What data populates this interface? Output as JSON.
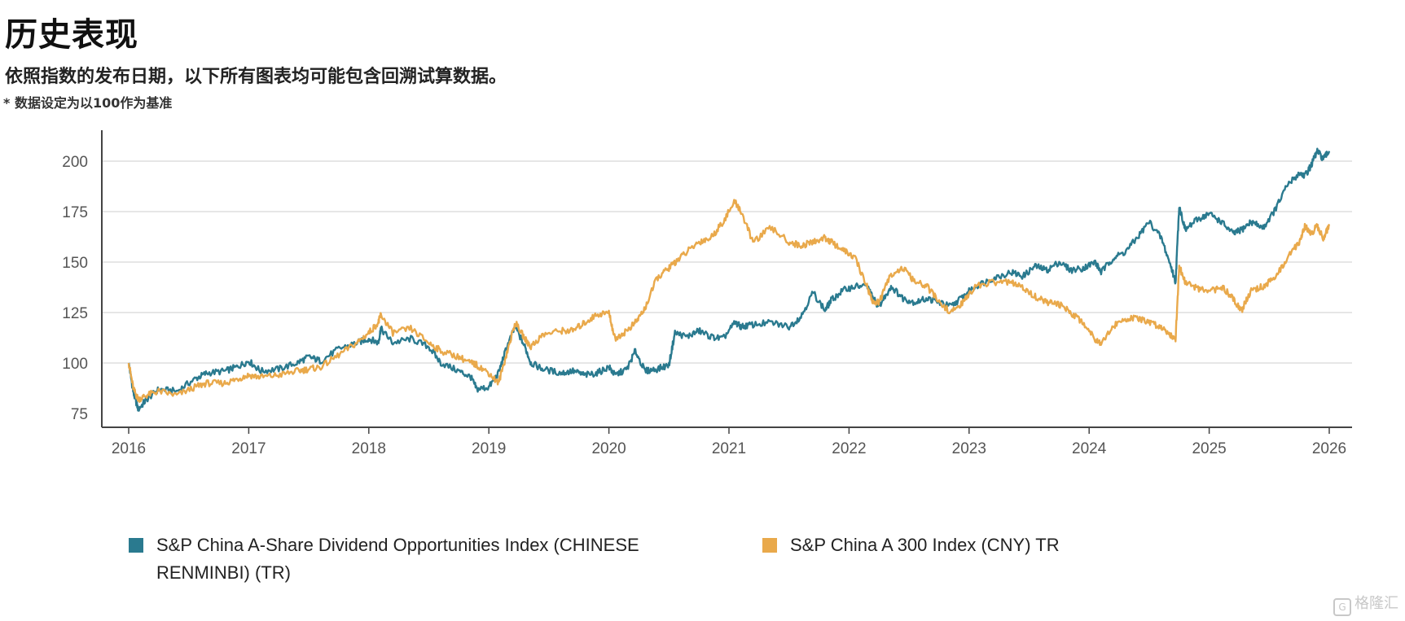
{
  "header": {
    "title": "历史表现",
    "subtitle": "依照指数的发布日期，以下所有图表均可能包含回溯试算数据。",
    "note": "* 数据设定为以100作为基准"
  },
  "watermark": {
    "icon": "G",
    "text": "格隆汇"
  },
  "chart_data": {
    "type": "line",
    "title": "",
    "xlabel": "",
    "ylabel": "",
    "xlim": [
      2016,
      2026
    ],
    "ylim": [
      70,
      214
    ],
    "x_ticks": [
      "2016",
      "2017",
      "2018",
      "2019",
      "2020",
      "2021",
      "2022",
      "2023",
      "2024",
      "2025",
      "2026"
    ],
    "y_ticks": [
      75,
      100,
      125,
      150,
      175,
      200
    ],
    "grid": "horizontal",
    "legend_position": "bottom",
    "series": [
      {
        "name": "S&P China A-Share Dividend Opportunities Index (CHINESE RENMINBI) (TR)",
        "color": "#2a7a8f",
        "x": [
          2016.0,
          2016.04,
          2016.08,
          2016.15,
          2016.25,
          2016.4,
          2016.55,
          2016.65,
          2016.8,
          2016.9,
          2017.0,
          2017.1,
          2017.25,
          2017.4,
          2017.5,
          2017.6,
          2017.75,
          2017.9,
          2018.0,
          2018.08,
          2018.1,
          2018.2,
          2018.35,
          2018.5,
          2018.6,
          2018.75,
          2018.85,
          2018.9,
          2019.0,
          2019.08,
          2019.15,
          2019.22,
          2019.3,
          2019.35,
          2019.45,
          2019.6,
          2019.7,
          2019.8,
          2019.9,
          2020.0,
          2020.05,
          2020.15,
          2020.22,
          2020.3,
          2020.4,
          2020.5,
          2020.55,
          2020.65,
          2020.75,
          2020.85,
          2020.95,
          2021.05,
          2021.1,
          2021.2,
          2021.35,
          2021.5,
          2021.6,
          2021.7,
          2021.8,
          2021.85,
          2021.95,
          2022.05,
          2022.15,
          2022.2,
          2022.25,
          2022.35,
          2022.45,
          2022.55,
          2022.65,
          2022.75,
          2022.85,
          2022.95,
          2023.05,
          2023.2,
          2023.35,
          2023.45,
          2023.55,
          2023.65,
          2023.75,
          2023.85,
          2023.95,
          2024.05,
          2024.1,
          2024.2,
          2024.3,
          2024.4,
          2024.5,
          2024.6,
          2024.68,
          2024.72,
          2024.75,
          2024.8,
          2024.9,
          2025.0,
          2025.1,
          2025.2,
          2025.27,
          2025.35,
          2025.45,
          2025.55,
          2025.65,
          2025.75,
          2025.8,
          2025.85,
          2025.9,
          2025.95,
          2026.0
        ],
        "y": [
          100,
          85,
          77,
          82,
          87,
          86,
          92,
          95,
          96,
          98,
          101,
          96,
          97,
          100,
          103,
          101,
          107,
          110,
          112,
          110,
          117,
          110,
          112,
          108,
          100,
          96,
          93,
          87,
          88,
          95,
          108,
          118,
          108,
          100,
          97,
          95,
          96,
          94,
          95,
          98,
          94,
          97,
          106,
          96,
          97,
          99,
          115,
          113,
          116,
          113,
          112,
          120,
          118,
          119,
          120,
          118,
          123,
          135,
          126,
          131,
          136,
          138,
          138,
          132,
          128,
          138,
          132,
          130,
          132,
          130,
          128,
          133,
          138,
          142,
          145,
          143,
          148,
          146,
          150,
          146,
          147,
          150,
          145,
          152,
          155,
          162,
          170,
          162,
          148,
          140,
          178,
          166,
          171,
          174,
          170,
          164,
          166,
          170,
          167,
          176,
          188,
          194,
          193,
          198,
          205,
          201,
          205
        ]
      },
      {
        "name": "S&P China A 300 Index (CNY) TR",
        "color": "#e9a94b",
        "x": [
          2016.0,
          2016.04,
          2016.08,
          2016.15,
          2016.25,
          2016.4,
          2016.55,
          2016.65,
          2016.8,
          2016.9,
          2017.0,
          2017.1,
          2017.25,
          2017.4,
          2017.5,
          2017.6,
          2017.75,
          2017.9,
          2018.0,
          2018.08,
          2018.1,
          2018.2,
          2018.35,
          2018.5,
          2018.6,
          2018.75,
          2018.85,
          2018.9,
          2019.0,
          2019.08,
          2019.15,
          2019.22,
          2019.3,
          2019.35,
          2019.45,
          2019.6,
          2019.7,
          2019.8,
          2019.9,
          2020.0,
          2020.05,
          2020.15,
          2020.22,
          2020.3,
          2020.4,
          2020.5,
          2020.55,
          2020.65,
          2020.75,
          2020.85,
          2020.95,
          2021.05,
          2021.1,
          2021.2,
          2021.35,
          2021.5,
          2021.6,
          2021.7,
          2021.8,
          2021.85,
          2021.95,
          2022.05,
          2022.15,
          2022.2,
          2022.25,
          2022.35,
          2022.45,
          2022.55,
          2022.65,
          2022.75,
          2022.85,
          2022.95,
          2023.05,
          2023.2,
          2023.35,
          2023.45,
          2023.55,
          2023.65,
          2023.75,
          2023.85,
          2023.95,
          2024.05,
          2024.1,
          2024.2,
          2024.3,
          2024.4,
          2024.5,
          2024.6,
          2024.68,
          2024.72,
          2024.75,
          2024.8,
          2024.9,
          2025.0,
          2025.1,
          2025.2,
          2025.27,
          2025.35,
          2025.45,
          2025.55,
          2025.65,
          2025.75,
          2025.8,
          2025.85,
          2025.9,
          2025.95,
          2026.0
        ],
        "y": [
          100,
          87,
          82,
          84,
          86,
          84,
          88,
          90,
          90,
          92,
          94,
          93,
          94,
          96,
          97,
          98,
          104,
          110,
          115,
          120,
          124,
          115,
          117,
          110,
          106,
          103,
          100,
          99,
          95,
          90,
          105,
          120,
          112,
          108,
          114,
          116,
          116,
          120,
          124,
          125,
          112,
          116,
          120,
          127,
          142,
          147,
          150,
          155,
          160,
          162,
          170,
          180,
          175,
          160,
          167,
          160,
          158,
          160,
          162,
          160,
          156,
          152,
          138,
          130,
          130,
          144,
          147,
          140,
          138,
          130,
          125,
          130,
          138,
          140,
          140,
          137,
          133,
          130,
          129,
          125,
          120,
          112,
          110,
          118,
          122,
          122,
          120,
          118,
          114,
          112,
          148,
          140,
          137,
          135,
          138,
          132,
          126,
          136,
          138,
          142,
          152,
          160,
          168,
          164,
          168,
          162,
          168
        ]
      }
    ]
  }
}
